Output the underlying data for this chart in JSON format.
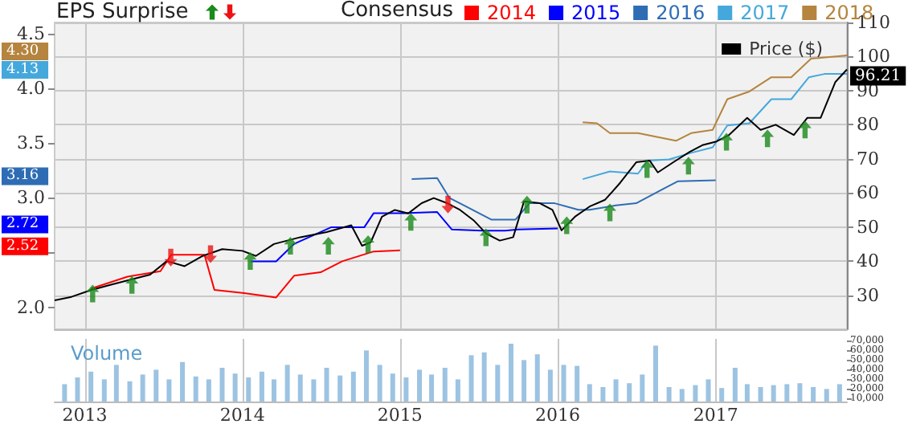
{
  "chart_data": {
    "type": "line",
    "annotations": [
      "EPS Surprise",
      "4.30",
      "4.13",
      "3.16",
      "2.72",
      "2.52"
    ],
    "legend_title": "Consensus",
    "y3label": "Volume",
    "grid": true,
    "legend": "top",
    "xlim": [
      "2012-10-23",
      "2017-11-01"
    ],
    "xticks": [
      "2013",
      "2014",
      "2015",
      "2016",
      "2017"
    ],
    "ylim": [
      1.8,
      4.6
    ],
    "yticks": [
      {
        "value": 2,
        "label": "2.0"
      },
      {
        "value": 2.5,
        "label": null
      },
      {
        "value": 3,
        "label": "3.0"
      },
      3.5,
      {
        "value": 4,
        "label": "4.0"
      },
      4.5
    ],
    "y2lim": [
      20,
      110
    ],
    "y2ticks": [
      30,
      40,
      50,
      60,
      70,
      80,
      90,
      100,
      110
    ],
    "y3lim": [
      7000,
      72000
    ],
    "y3ticks": [
      {
        "value": 10000,
        "label": "10,000"
      },
      {
        "value": 20000,
        "label": "20,000"
      },
      {
        "value": 30000,
        "label": "30,000"
      },
      {
        "value": 40000,
        "label": "40,000"
      },
      {
        "value": 50000,
        "label": "50,000"
      },
      {
        "value": 60000,
        "label": "60,000"
      },
      {
        "value": 70000,
        "label": "70,000"
      }
    ],
    "series": [
      {
        "name": "2014",
        "color": "#ff0000",
        "x": [
          "2013-01-15",
          "2013-04-10",
          "2013-06-25",
          "2013-07-20",
          "2013-10-05",
          "2013-10-28",
          "2014-01-05",
          "2014-03-20",
          "2014-05-01",
          "2014-07-01",
          "2014-08-20",
          "2014-11-01",
          "2015-01-01"
        ],
        "values": [
          2.17,
          2.28,
          2.33,
          2.48,
          2.48,
          2.16,
          2.13,
          2.09,
          2.29,
          2.32,
          2.42,
          2.51,
          2.52
        ]
      },
      {
        "name": "2015",
        "color": "#0000ff",
        "x": [
          "2014-01-20",
          "2014-03-20",
          "2014-05-01",
          "2014-07-25",
          "2014-10-10",
          "2014-11-01",
          "2015-01-15",
          "2015-03-28",
          "2015-05-01",
          "2015-07-10",
          "2015-09-01",
          "2015-10-01",
          "2016-01-01"
        ],
        "values": [
          2.42,
          2.42,
          2.58,
          2.73,
          2.73,
          2.86,
          2.86,
          2.87,
          2.71,
          2.7,
          2.7,
          2.71,
          2.72
        ]
      },
      {
        "name": "2016",
        "color": "#2e6db4",
        "x": [
          "2015-01-28",
          "2015-03-28",
          "2015-04-25",
          "2015-08-01",
          "2015-09-25",
          "2015-10-28",
          "2015-12-25",
          "2016-02-18",
          "2016-03-15",
          "2016-05-15",
          "2016-07-01",
          "2016-09-01",
          "2016-10-05",
          "2017-01-01"
        ],
        "values": [
          3.17,
          3.18,
          3.0,
          2.8,
          2.8,
          2.95,
          2.95,
          2.89,
          2.89,
          2.93,
          2.95,
          3.08,
          3.15,
          3.16
        ]
      },
      {
        "name": "2017",
        "color": "#45a8dc",
        "x": [
          "2016-02-28",
          "2016-05-01",
          "2016-07-05",
          "2016-07-28",
          "2016-09-15",
          "2016-11-05",
          "2016-12-25",
          "2017-01-28",
          "2017-03-20",
          "2017-05-10",
          "2017-06-25",
          "2017-08-05",
          "2017-09-10",
          "2017-11-01"
        ],
        "values": [
          3.17,
          3.24,
          3.22,
          3.34,
          3.35,
          3.41,
          3.46,
          3.66,
          3.68,
          3.9,
          3.9,
          4.1,
          4.13,
          4.13
        ]
      },
      {
        "name": "2018",
        "color": "#b5843e",
        "x": [
          "2016-02-28",
          "2016-04-01",
          "2016-05-01",
          "2016-07-05",
          "2016-10-01",
          "2016-11-05",
          "2016-12-25",
          "2017-01-28",
          "2017-03-20",
          "2017-05-10",
          "2017-06-25",
          "2017-08-10",
          "2017-11-01"
        ],
        "values": [
          3.69,
          3.68,
          3.59,
          3.59,
          3.52,
          3.59,
          3.62,
          3.9,
          3.97,
          4.1,
          4.1,
          4.27,
          4.3
        ]
      },
      {
        "name": "Price ($)",
        "color": "#000000",
        "axis": "y2",
        "x": [
          "2012-10-23",
          "2012-12-01",
          "2013-01-15",
          "2013-03-01",
          "2013-04-15",
          "2013-06-01",
          "2013-07-10",
          "2013-08-20",
          "2013-10-01",
          "2013-11-15",
          "2014-01-01",
          "2014-02-01",
          "2014-03-15",
          "2014-05-15",
          "2014-07-15",
          "2014-09-10",
          "2014-10-05",
          "2014-10-25",
          "2014-11-20",
          "2014-12-20",
          "2015-01-20",
          "2015-02-20",
          "2015-03-20",
          "2015-04-20",
          "2015-05-20",
          "2015-06-20",
          "2015-07-20",
          "2015-08-20",
          "2015-09-20",
          "2015-10-15",
          "2015-11-20",
          "2015-12-20",
          "2016-01-10",
          "2016-02-10",
          "2016-03-15",
          "2016-04-20",
          "2016-05-25",
          "2016-07-01",
          "2016-08-01",
          "2016-08-20",
          "2016-09-25",
          "2016-11-01",
          "2016-12-01",
          "2017-01-01",
          "2017-02-01",
          "2017-03-15",
          "2017-04-15",
          "2017-05-20",
          "2017-07-01",
          "2017-08-01",
          "2017-09-01",
          "2017-10-05",
          "2017-11-01"
        ],
        "values": [
          28.5,
          29.5,
          31.5,
          33,
          34.5,
          36,
          40,
          38.5,
          41.5,
          43.5,
          43,
          41.5,
          45,
          47,
          48.5,
          50.5,
          44.5,
          45.5,
          53,
          55,
          54,
          57,
          58.5,
          57,
          55,
          52,
          48,
          46,
          47,
          57.5,
          57,
          55,
          49,
          53,
          56,
          58,
          63,
          69,
          69.5,
          66,
          69,
          72,
          74,
          75,
          77,
          82,
          78.5,
          80,
          77,
          82,
          82,
          92.5,
          96.21
        ],
        "value_labels": [
          null,
          null,
          null,
          null,
          null,
          null,
          null,
          null,
          null,
          null,
          null,
          null,
          null,
          null,
          null,
          null,
          null,
          null,
          null,
          null,
          null,
          null,
          null,
          null,
          null,
          null,
          null,
          null,
          null,
          null,
          null,
          null,
          null,
          null,
          null,
          null,
          null,
          null,
          null,
          null,
          null,
          null,
          null,
          null,
          null,
          null,
          null,
          null,
          null,
          null,
          null,
          null,
          "96.21"
        ]
      },
      {
        "type": "scatter",
        "axis": "y2",
        "color": "#1a8a1a",
        "marker": "triangle",
        "x": [
          "2013-01-19",
          "2013-04-20",
          "2014-01-19",
          "2014-04-22",
          "2014-07-19",
          "2014-10-19",
          "2015-01-26",
          "2015-07-19",
          "2015-10-22",
          "2016-01-22",
          "2016-05-01",
          "2016-07-26",
          "2016-10-30",
          "2017-01-26",
          "2017-05-01",
          "2017-07-27"
        ],
        "values": [
          30.5,
          33,
          40,
          44.5,
          44.5,
          45,
          51.5,
          47,
          56.6,
          50.5,
          54.3,
          67,
          68,
          75,
          76,
          78.6
        ]
      },
      {
        "type": "scatter",
        "axis": "y2",
        "color": "#ee1111",
        "marker": "triangle",
        "x": [
          "2013-07-19",
          "2013-10-19",
          "2015-04-22"
        ],
        "values": [
          41,
          42,
          56.6
        ]
      },
      {
        "type": "bar",
        "axis": "y3",
        "color": "#9cc3e2",
        "x": [
          "2012-11-15",
          "2012-12-15",
          "2013-01-15",
          "2013-02-15",
          "2013-03-15",
          "2013-04-15",
          "2013-05-15",
          "2013-06-15",
          "2013-07-15",
          "2013-08-15",
          "2013-09-15",
          "2013-10-15",
          "2013-11-15",
          "2013-12-15",
          "2014-01-15",
          "2014-02-15",
          "2014-03-15",
          "2014-04-15",
          "2014-05-15",
          "2014-06-15",
          "2014-07-15",
          "2014-08-15",
          "2014-09-15",
          "2014-10-15",
          "2014-11-15",
          "2014-12-15",
          "2015-01-15",
          "2015-02-15",
          "2015-03-15",
          "2015-04-15",
          "2015-05-15",
          "2015-06-15",
          "2015-07-15",
          "2015-08-15",
          "2015-09-15",
          "2015-10-15",
          "2015-11-15",
          "2015-12-15",
          "2016-01-15",
          "2016-02-15",
          "2016-03-15",
          "2016-04-15",
          "2016-05-15",
          "2016-06-15",
          "2016-07-15",
          "2016-08-15",
          "2016-09-15",
          "2016-10-15",
          "2016-11-15",
          "2016-12-15",
          "2017-01-15",
          "2017-02-15",
          "2017-03-15",
          "2017-04-15",
          "2017-05-15",
          "2017-06-15",
          "2017-07-15",
          "2017-08-15",
          "2017-09-15",
          "2017-10-15"
        ],
        "values": [
          25000,
          32000,
          38000,
          30000,
          45000,
          28000,
          35000,
          40000,
          30000,
          48000,
          33000,
          30000,
          42000,
          36000,
          32000,
          38000,
          30000,
          45000,
          35000,
          30000,
          42000,
          34000,
          38000,
          60000,
          45000,
          36000,
          32000,
          40000,
          35000,
          42000,
          30000,
          55000,
          58000,
          45000,
          67000,
          50000,
          56000,
          40000,
          45000,
          44000,
          25000,
          22000,
          30000,
          26000,
          35000,
          65000,
          22000,
          20000,
          24000,
          30000,
          21000,
          42000,
          25000,
          22000,
          24000,
          25000,
          26000,
          22000,
          20000,
          25000
        ]
      }
    ]
  }
}
